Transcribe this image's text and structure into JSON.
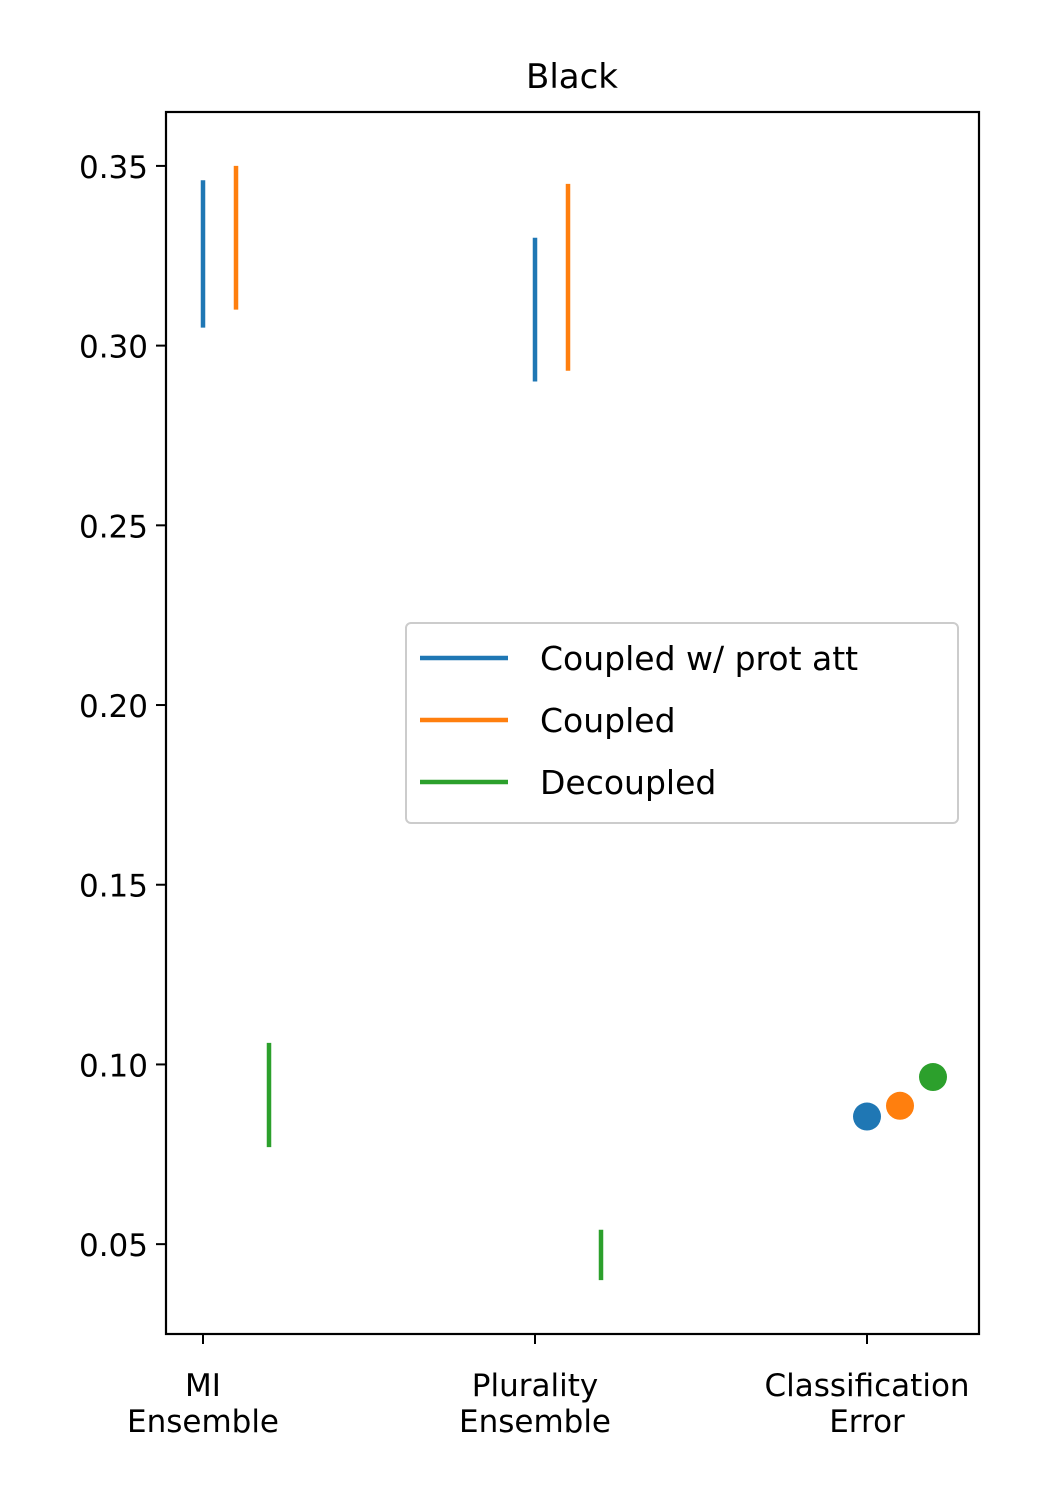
{
  "chart_data": {
    "type": "range",
    "title": "Black",
    "xlabel": "",
    "ylabel": "",
    "categories": [
      "MI\nEnsemble",
      "Plurality\nEnsemble",
      "Classification\nError"
    ],
    "ylim": [
      0.025,
      0.365
    ],
    "yticks": [
      "0.05",
      "0.10",
      "0.15",
      "0.20",
      "0.25",
      "0.30",
      "0.35"
    ],
    "ytick_values": [
      0.05,
      0.1,
      0.15,
      0.2,
      0.25,
      0.3,
      0.35
    ],
    "legend_position": "center-right",
    "series": [
      {
        "name": "Coupled w/ prot att",
        "color": "#1f77b4",
        "ranges": [
          [
            0.305,
            0.346
          ],
          [
            0.29,
            0.33
          ]
        ],
        "point": 0.0855
      },
      {
        "name": "Coupled",
        "color": "#ff7f0e",
        "ranges": [
          [
            0.31,
            0.35
          ],
          [
            0.293,
            0.345
          ]
        ],
        "point": 0.0885
      },
      {
        "name": "Decoupled",
        "color": "#2ca02c",
        "ranges": [
          [
            0.077,
            0.106
          ],
          [
            0.04,
            0.054
          ]
        ],
        "point": 0.0965
      }
    ]
  }
}
